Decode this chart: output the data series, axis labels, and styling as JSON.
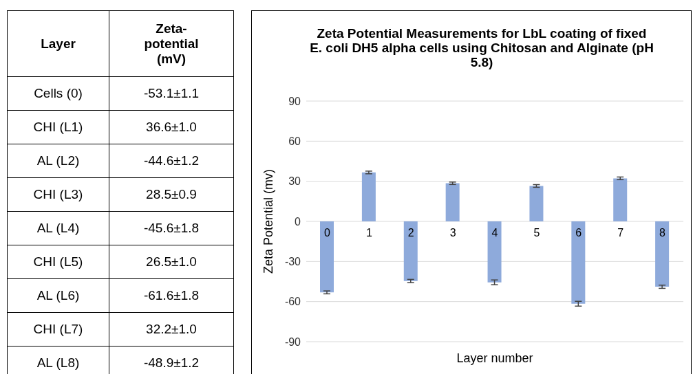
{
  "chart_data": [
    {
      "type": "other",
      "annotations": [
        "Layer",
        "Zeta-potential (mV)",
        "Cells (0)",
        "-53.1±1.1",
        "CHI (L1)",
        "36.6±1.0",
        "AL (L2)",
        "-44.6±1.2",
        "CHI (L3)",
        "28.5±0.9",
        "AL (L4)",
        "-45.6±1.8",
        "CHI (L5)",
        "26.5±1.0",
        "AL (L6)",
        "-61.6±1.8",
        "CHI (L7)",
        "32.2±1.0",
        "AL (L8)",
        "-48.9±1.2"
      ]
    },
    {
      "type": "bar",
      "title": "Zeta Potential Measurements for LbL coating of fixed E. coli DH5 alpha cells using Chitosan and Alginate (pH 5.8)",
      "xlabel": "Layer number",
      "ylabel": "Zeta Potential (mv)",
      "categories": [
        "0",
        "1",
        "2",
        "3",
        "4",
        "5",
        "6",
        "7",
        "8"
      ],
      "values": [
        -53.1,
        36.6,
        -44.6,
        28.5,
        -45.6,
        26.5,
        -61.6,
        32.2,
        -48.9
      ],
      "errors": [
        1.1,
        1.0,
        1.2,
        0.9,
        1.8,
        1.0,
        1.8,
        1.0,
        1.2
      ],
      "color": "#8eaadb",
      "ylim": [
        -90,
        90
      ],
      "yticks": [
        -90,
        -60,
        -30,
        0,
        30,
        60,
        90
      ],
      "grid": "y"
    }
  ]
}
